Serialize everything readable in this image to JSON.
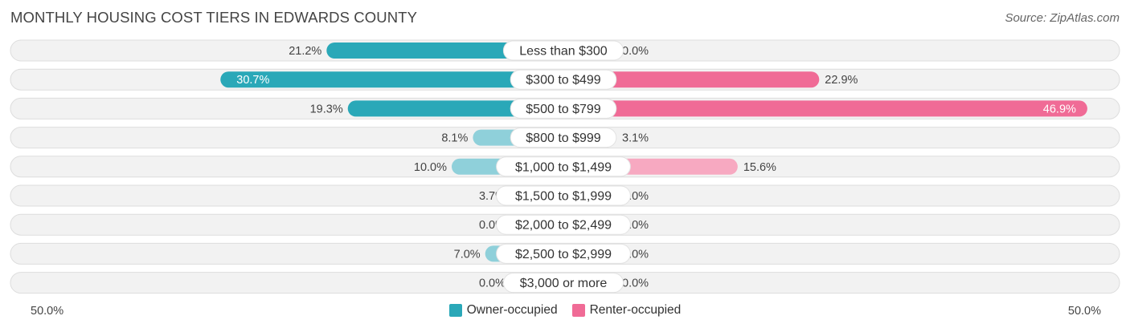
{
  "title": "MONTHLY HOUSING COST TIERS IN EDWARDS COUNTY",
  "source": "Source: ZipAtlas.com",
  "colors": {
    "owner": "#2aa8b8",
    "owner_light": "#8fd0da",
    "renter": "#f06b96",
    "renter_light": "#f7a9c1",
    "row_bg": "#f2f2f2"
  },
  "chart_data": {
    "type": "bar",
    "orientation": "horizontal-diverging",
    "categories": [
      "Less than $300",
      "$300 to $499",
      "$500 to $799",
      "$800 to $999",
      "$1,000 to $1,499",
      "$1,500 to $1,999",
      "$2,000 to $2,499",
      "$2,500 to $2,999",
      "$3,000 or more"
    ],
    "series": [
      {
        "name": "Owner-occupied",
        "values": [
          21.2,
          30.7,
          19.3,
          8.1,
          10.0,
          3.7,
          0.0,
          7.0,
          0.0
        ],
        "labels": [
          "21.2%",
          "30.7%",
          "19.3%",
          "8.1%",
          "10.0%",
          "3.7%",
          "0.0%",
          "7.0%",
          "0.0%"
        ]
      },
      {
        "name": "Renter-occupied",
        "values": [
          0.0,
          22.9,
          46.9,
          3.1,
          15.6,
          0.0,
          0.0,
          0.0,
          0.0
        ],
        "labels": [
          "0.0%",
          "22.9%",
          "46.9%",
          "3.1%",
          "15.6%",
          "0.0%",
          "0.0%",
          "0.0%",
          "0.0%"
        ]
      }
    ],
    "xlim": [
      -50,
      50
    ],
    "axis_labels": {
      "left": "50.0%",
      "right": "50.0%"
    },
    "legend_position": "bottom-center"
  }
}
